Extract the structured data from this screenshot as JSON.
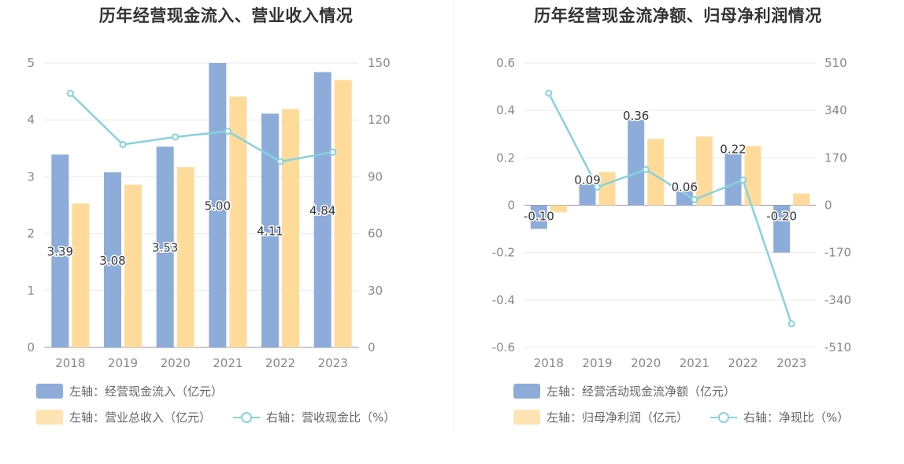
{
  "colors": {
    "bar_blue": "#8eacd9",
    "bar_orange": "#ffdb9b",
    "line_teal": "#86d3dc",
    "grid": "#e6e9ef",
    "axis_text": "#888888"
  },
  "chart_data": [
    {
      "type": "bar",
      "title": "历年经营现金流入、营业收入情况",
      "categories": [
        "2018",
        "2019",
        "2020",
        "2021",
        "2022",
        "2023"
      ],
      "y_left": {
        "ticks": [
          "0",
          "1",
          "2",
          "3",
          "4",
          "5"
        ],
        "ylim": [
          0,
          5
        ]
      },
      "y_right": {
        "ticks": [
          "0",
          "30",
          "60",
          "90",
          "120",
          "150"
        ],
        "ylim": [
          0,
          150
        ]
      },
      "series": [
        {
          "name": "左轴：经营现金流入（亿元）",
          "type": "bar",
          "axis": "left",
          "values": [
            3.39,
            3.08,
            3.53,
            5.0,
            4.11,
            4.84
          ],
          "labels": [
            "3.39",
            "3.08",
            "3.53",
            "5.00",
            "4.11",
            "4.84"
          ]
        },
        {
          "name": "左轴：营业总收入（亿元）",
          "type": "bar",
          "axis": "left",
          "values": [
            2.53,
            2.86,
            3.17,
            4.41,
            4.19,
            4.7
          ]
        },
        {
          "name": "右轴：营收现金比（%）",
          "type": "line",
          "axis": "right",
          "values": [
            134,
            107,
            111,
            114,
            98,
            103
          ]
        }
      ]
    },
    {
      "type": "bar",
      "title": "历年经营现金流净额、归母净利润情况",
      "categories": [
        "2018",
        "2019",
        "2020",
        "2021",
        "2022",
        "2023"
      ],
      "y_left": {
        "ticks": [
          "-0.6",
          "-0.4",
          "-0.2",
          "0",
          "0.2",
          "0.4",
          "0.6"
        ],
        "ylim": [
          -0.6,
          0.6
        ]
      },
      "y_right": {
        "ticks": [
          "-510",
          "-340",
          "-170",
          "0",
          "170",
          "340",
          "510"
        ],
        "ylim": [
          -510,
          510
        ]
      },
      "series": [
        {
          "name": "左轴：经营活动现金流净额（亿元）",
          "type": "bar",
          "axis": "left",
          "values": [
            -0.1,
            0.09,
            0.36,
            0.06,
            0.22,
            -0.2
          ],
          "labels": [
            "-0.10",
            "0.09",
            "0.36",
            "0.06",
            "0.22",
            "-0.20"
          ]
        },
        {
          "name": "左轴：归母净利润（亿元）",
          "type": "bar",
          "axis": "left",
          "values": [
            -0.03,
            0.14,
            0.28,
            0.29,
            0.25,
            0.05
          ]
        },
        {
          "name": "右轴：净现比（%）",
          "type": "line",
          "axis": "right",
          "values": [
            402,
            65,
            128,
            20,
            90,
            -425
          ]
        }
      ]
    }
  ]
}
